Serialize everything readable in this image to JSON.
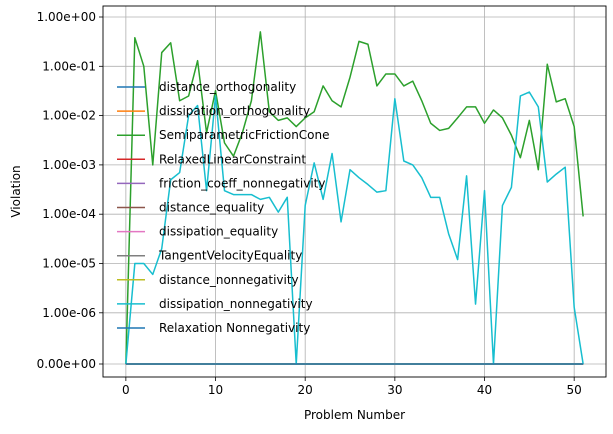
{
  "chart_data": {
    "type": "line",
    "xlabel": "Problem Number",
    "ylabel": "Violation",
    "grid": true,
    "legend_position": "left",
    "x_ticks": [
      0,
      10,
      20,
      30,
      40,
      50
    ],
    "x_tick_labels": [
      "0",
      "10",
      "20",
      "30",
      "40",
      "50"
    ],
    "xlim": [
      -2.55,
      53.55
    ],
    "y_ticks_exp": [
      0,
      -1,
      -2,
      -3,
      -4,
      -5,
      -6,
      -99
    ],
    "y_tick_labels": [
      "1.00e+00",
      "1.00e-01",
      "1.00e-02",
      "1.00e-03",
      "1.00e-04",
      "1.00e-05",
      "1.00e-06",
      "0.00e+00"
    ],
    "x": [
      0,
      1,
      2,
      3,
      4,
      5,
      6,
      7,
      8,
      9,
      10,
      11,
      12,
      13,
      14,
      15,
      16,
      17,
      18,
      19,
      20,
      21,
      22,
      23,
      24,
      25,
      26,
      27,
      28,
      29,
      30,
      31,
      32,
      33,
      34,
      35,
      36,
      37,
      38,
      39,
      40,
      41,
      42,
      43,
      44,
      45,
      46,
      47,
      48,
      49,
      50,
      51
    ],
    "series": [
      {
        "name": "distance_orthogonality",
        "color": "#1f77b4",
        "values": [
          0,
          0,
          0,
          0,
          0,
          0,
          0,
          0,
          0,
          0,
          0,
          0,
          0,
          0,
          0,
          0,
          0,
          0,
          0,
          0,
          0,
          0,
          0,
          0,
          0,
          0,
          0,
          0,
          0,
          0,
          0,
          0,
          0,
          0,
          0,
          0,
          0,
          0,
          0,
          0,
          0,
          0,
          0,
          0,
          0,
          0,
          0,
          0,
          0,
          0,
          0,
          0
        ]
      },
      {
        "name": "dissipation_orthogonality",
        "color": "#ff7f0e",
        "values": [
          0,
          0,
          0,
          0,
          0,
          0,
          0,
          0,
          0,
          0,
          0,
          0,
          0,
          0,
          0,
          0,
          0,
          0,
          0,
          0,
          0,
          0,
          0,
          0,
          0,
          0,
          0,
          0,
          0,
          0,
          0,
          0,
          0,
          0,
          0,
          0,
          0,
          0,
          0,
          0,
          0,
          0,
          0,
          0,
          0,
          0,
          0,
          0,
          0,
          0,
          0,
          0
        ]
      },
      {
        "name": "SemiparametricFrictionCone",
        "color": "#2ca02c",
        "values": [
          0,
          0.38,
          0.1,
          0.001,
          0.19,
          0.3,
          0.02,
          0.025,
          0.13,
          0.0045,
          0.032,
          0.0028,
          0.0015,
          0.0045,
          0.02,
          0.5,
          0.012,
          0.008,
          0.009,
          0.006,
          0.009,
          0.012,
          0.04,
          0.02,
          0.015,
          0.06,
          0.32,
          0.28,
          0.04,
          0.07,
          0.07,
          0.04,
          0.05,
          0.02,
          0.007,
          0.005,
          0.0055,
          0.009,
          0.015,
          0.015,
          0.007,
          0.013,
          0.009,
          0.004,
          0.0014,
          0.008,
          0.0008,
          0.11,
          0.019,
          0.022,
          0.006,
          9e-05
        ]
      },
      {
        "name": "RelaxedLinearConstraint",
        "color": "#d62728",
        "values": [
          0,
          0,
          0,
          0,
          0,
          0,
          0,
          0,
          0,
          0,
          0,
          0,
          0,
          0,
          0,
          0,
          0,
          0,
          0,
          0,
          0,
          0,
          0,
          0,
          0,
          0,
          0,
          0,
          0,
          0,
          0,
          0,
          0,
          0,
          0,
          0,
          0,
          0,
          0,
          0,
          0,
          0,
          0,
          0,
          0,
          0,
          0,
          0,
          0,
          0,
          0,
          0
        ]
      },
      {
        "name": "friction_coeff_nonnegativity",
        "color": "#9467bd",
        "values": [
          0,
          0,
          0,
          0,
          0,
          0,
          0,
          0,
          0,
          0,
          0,
          0,
          0,
          0,
          0,
          0,
          0,
          0,
          0,
          0,
          0,
          0,
          0,
          0,
          0,
          0,
          0,
          0,
          0,
          0,
          0,
          0,
          0,
          0,
          0,
          0,
          0,
          0,
          0,
          0,
          0,
          0,
          0,
          0,
          0,
          0,
          0,
          0,
          0,
          0,
          0,
          0
        ]
      },
      {
        "name": "distance_equality",
        "color": "#8c564b",
        "values": [
          0,
          0,
          0,
          0,
          0,
          0,
          0,
          0,
          0,
          0,
          0,
          0,
          0,
          0,
          0,
          0,
          0,
          0,
          0,
          0,
          0,
          0,
          0,
          0,
          0,
          0,
          0,
          0,
          0,
          0,
          0,
          0,
          0,
          0,
          0,
          0,
          0,
          0,
          0,
          0,
          0,
          0,
          0,
          0,
          0,
          0,
          0,
          0,
          0,
          0,
          0,
          0
        ]
      },
      {
        "name": "dissipation_equality",
        "color": "#e377c2",
        "values": [
          0,
          0,
          0,
          0,
          0,
          0,
          0,
          0,
          0,
          0,
          0,
          0,
          0,
          0,
          0,
          0,
          0,
          0,
          0,
          0,
          0,
          0,
          0,
          0,
          0,
          0,
          0,
          0,
          0,
          0,
          0,
          0,
          0,
          0,
          0,
          0,
          0,
          0,
          0,
          0,
          0,
          0,
          0,
          0,
          0,
          0,
          0,
          0,
          0,
          0,
          0,
          0
        ]
      },
      {
        "name": "TangentVelocityEquality",
        "color": "#7f7f7f",
        "values": [
          0,
          0,
          0,
          0,
          0,
          0,
          0,
          0,
          0,
          0,
          0,
          0,
          0,
          0,
          0,
          0,
          0,
          0,
          0,
          0,
          0,
          0,
          0,
          0,
          0,
          0,
          0,
          0,
          0,
          0,
          0,
          0,
          0,
          0,
          0,
          0,
          0,
          0,
          0,
          0,
          0,
          0,
          0,
          0,
          0,
          0,
          0,
          0,
          0,
          0,
          0,
          0
        ]
      },
      {
        "name": "distance_nonnegativity",
        "color": "#bcbd22",
        "values": [
          0,
          0,
          0,
          0,
          0,
          0,
          0,
          0,
          0,
          0,
          0,
          0,
          0,
          0,
          0,
          0,
          0,
          0,
          0,
          0,
          0,
          0,
          0,
          0,
          0,
          0,
          0,
          0,
          0,
          0,
          0,
          0,
          0,
          0,
          0,
          0,
          0,
          0,
          0,
          0,
          0,
          0,
          0,
          0,
          0,
          0,
          0,
          0,
          0,
          0,
          0,
          0
        ]
      },
      {
        "name": "dissipation_nonnegativity",
        "color": "#17becf",
        "values": [
          0,
          1e-05,
          1e-05,
          6e-06,
          2e-05,
          0.0005,
          0.0007,
          0.01,
          0.016,
          0.0003,
          0.025,
          0.0003,
          0.00025,
          0.00025,
          0.00025,
          0.0002,
          0.00022,
          0.00011,
          0.00022,
          0,
          0.00015,
          0.0011,
          0.0002,
          0.0017,
          7e-05,
          0.0008,
          0.00055,
          0.0004,
          0.00028,
          0.0003,
          0.022,
          0.0012,
          0.001,
          0.00055,
          0.00022,
          0.00022,
          4e-05,
          1.2e-05,
          0.0006,
          1.5e-06,
          0.0003,
          0,
          0.00015,
          0.00035,
          0.025,
          0.03,
          0.015,
          0.00045,
          0.00065,
          0.0009,
          1.3e-06,
          0
        ]
      },
      {
        "name": "Relaxation Nonnegativity",
        "color": "#1f77b4",
        "values": [
          0,
          0,
          0,
          0,
          0,
          0,
          0,
          0,
          0,
          0,
          0,
          0,
          0,
          0,
          0,
          0,
          0,
          0,
          0,
          0,
          0,
          0,
          0,
          0,
          0,
          0,
          0,
          0,
          0,
          0,
          0,
          0,
          0,
          0,
          0,
          0,
          0,
          0,
          0,
          0,
          0,
          0,
          0,
          0,
          0,
          0,
          0,
          0,
          0,
          0,
          0,
          0
        ]
      }
    ]
  }
}
